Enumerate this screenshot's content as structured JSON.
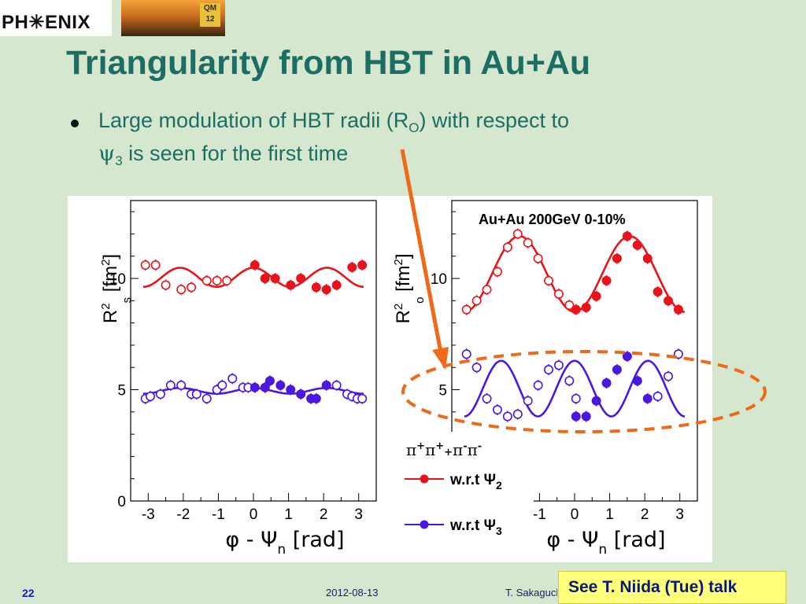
{
  "slide": {
    "logo_text": "PH✳ENIX",
    "photo_badge": "QM 12",
    "title": "Triangularity from HBT in Au+Au",
    "bullet": {
      "line1_pre": "Large modulation of HBT radii (R",
      "line1_sub": "O",
      "line1_post": ") with respect to",
      "line2_psi": "ψ",
      "line2_sub": "3",
      "line2_post": " is seen for the first time"
    },
    "footer": {
      "page": "22",
      "date": "2012-08-13",
      "author": "T. Sakaguchi"
    },
    "callout": "See T. Niida (Tue) talk"
  },
  "colors": {
    "title": "#1c6e64",
    "red_series": "#e8141b",
    "blue_series": "#4c17e0",
    "arrow": "#ee6a1a",
    "ellipse": "#ee6a1a",
    "callout_bg": "#ffff7a"
  },
  "chart_data": [
    {
      "type": "scatter",
      "panel": "left",
      "ylabel_main": "R",
      "ylabel_sup": "2",
      "ylabel_sub": "s",
      "ylabel_unit_pre": "[fm",
      "ylabel_unit_sup": "2",
      "ylabel_unit_post": "]",
      "xlabel_main": "φ - Ψ",
      "xlabel_sub": "n",
      "xlabel_unit": " [rad]",
      "xlim": [
        -3.5,
        3.5
      ],
      "ylim": [
        0,
        13.5
      ],
      "xticks": [
        -3,
        -2,
        -1,
        0,
        1,
        2,
        3
      ],
      "yticks": [
        0,
        5,
        10
      ],
      "series": [
        {
          "marker": "open",
          "color": "red",
          "x": [
            -3.08,
            -2.79,
            -2.5,
            -2.06,
            -1.77,
            -1.33,
            -1.04,
            -0.76
          ],
          "y": [
            10.6,
            10.6,
            9.7,
            9.5,
            9.6,
            9.9,
            9.9,
            9.9
          ]
        },
        {
          "marker": "filled",
          "color": "red",
          "x": [
            0.04,
            0.33,
            0.62,
            1.06,
            1.35,
            1.79,
            2.08,
            2.37,
            2.81,
            3.1
          ],
          "y": [
            10.6,
            10.0,
            10.0,
            9.7,
            10.0,
            9.6,
            9.5,
            9.7,
            10.5,
            10.6
          ]
        },
        {
          "marker": "open",
          "color": "blue",
          "x": [
            -3.08,
            -2.94,
            -2.65,
            -2.36,
            -2.06,
            -1.77,
            -1.62,
            -1.33,
            -1.04,
            -0.89,
            -0.6,
            -0.3,
            -0.15,
            2.37,
            2.67,
            2.81,
            2.96,
            3.1
          ],
          "y": [
            4.6,
            4.7,
            4.8,
            5.2,
            5.2,
            4.8,
            4.8,
            4.6,
            5.0,
            5.2,
            5.5,
            5.1,
            5.1,
            5.2,
            4.8,
            4.7,
            4.6,
            4.6
          ]
        },
        {
          "marker": "filled",
          "color": "blue",
          "x": [
            0.04,
            0.33,
            0.47,
            0.77,
            1.06,
            1.35,
            1.64,
            1.79,
            2.08
          ],
          "y": [
            5.1,
            5.1,
            5.4,
            5.2,
            5.0,
            4.8,
            4.6,
            4.6,
            5.2
          ]
        }
      ],
      "fits": [
        {
          "color": "red",
          "mean": 10.05,
          "amp_cos2": 0.0,
          "amp_cos3": 0.43
        },
        {
          "color": "blue",
          "mean": 4.95,
          "amp_cos2": 0.0,
          "amp_cos3": 0.13
        }
      ]
    },
    {
      "type": "scatter",
      "panel": "right",
      "annotation": "Au+Au 200GeV 0-10%",
      "ylabel_main": "R",
      "ylabel_sup": "2",
      "ylabel_sub": "o",
      "ylabel_unit_pre": "[fm",
      "ylabel_unit_sup": "2",
      "ylabel_unit_post": "]",
      "xlabel_main": "φ - Ψ",
      "xlabel_sub": "n",
      "xlabel_unit": " [rad]",
      "xlim": [
        -3.5,
        3.5
      ],
      "ylim": [
        0,
        13.5
      ],
      "xticks": [
        -1,
        0,
        1,
        2,
        3
      ],
      "yticks": [
        5,
        10
      ],
      "legend": {
        "particles_html": "π<sup>+</sup>π<sup>+</sup>+π<sup>-</sup>π<sup>-</sup>",
        "entries": [
          {
            "label": "w.r.t Ψ",
            "sub": "2",
            "color": "red"
          },
          {
            "label": "w.r.t Ψ",
            "sub": "3",
            "color": "blue"
          }
        ]
      },
      "series": [
        {
          "marker": "open",
          "color": "red",
          "x": [
            -3.08,
            -2.79,
            -2.5,
            -2.2,
            -1.91,
            -1.62,
            -1.33,
            -1.04,
            -0.74,
            -0.45,
            -0.15
          ],
          "y": [
            8.6,
            9.0,
            9.5,
            10.3,
            11.4,
            12.0,
            11.6,
            10.9,
            9.9,
            9.3,
            8.8
          ]
        },
        {
          "marker": "filled",
          "color": "red",
          "x": [
            0.04,
            0.33,
            0.62,
            0.91,
            1.21,
            1.5,
            1.79,
            2.08,
            2.37,
            2.67,
            2.96
          ],
          "y": [
            8.6,
            8.7,
            9.2,
            9.9,
            10.9,
            11.9,
            11.5,
            10.9,
            9.4,
            9.0,
            8.6
          ]
        },
        {
          "marker": "open",
          "color": "blue",
          "x": [
            -3.08,
            -2.79,
            -2.5,
            -2.2,
            -1.91,
            -1.62,
            -1.33,
            -1.04,
            -0.74,
            -0.45,
            -0.15,
            0.04,
            2.37,
            2.67,
            2.96
          ],
          "y": [
            6.6,
            6.0,
            4.6,
            4.1,
            3.8,
            3.9,
            4.5,
            5.2,
            5.9,
            6.1,
            5.4,
            4.6,
            4.7,
            5.6,
            6.6
          ],
          "note": "open blue markers along the left half and right tail"
        },
        {
          "marker": "filled",
          "color": "blue",
          "x": [
            0.04,
            0.33,
            0.62,
            0.91,
            1.21,
            1.5,
            1.79,
            2.08
          ],
          "y": [
            3.8,
            3.8,
            4.5,
            5.3,
            5.9,
            6.5,
            5.4,
            4.6
          ]
        }
      ],
      "fits": [
        {
          "color": "red",
          "mean": 10.2,
          "amp_cos2": -1.7,
          "amp_cos3": 0.0
        },
        {
          "color": "blue",
          "mean": 5.05,
          "amp_cos2": 0.0,
          "amp_cos3": 1.25
        }
      ]
    }
  ]
}
